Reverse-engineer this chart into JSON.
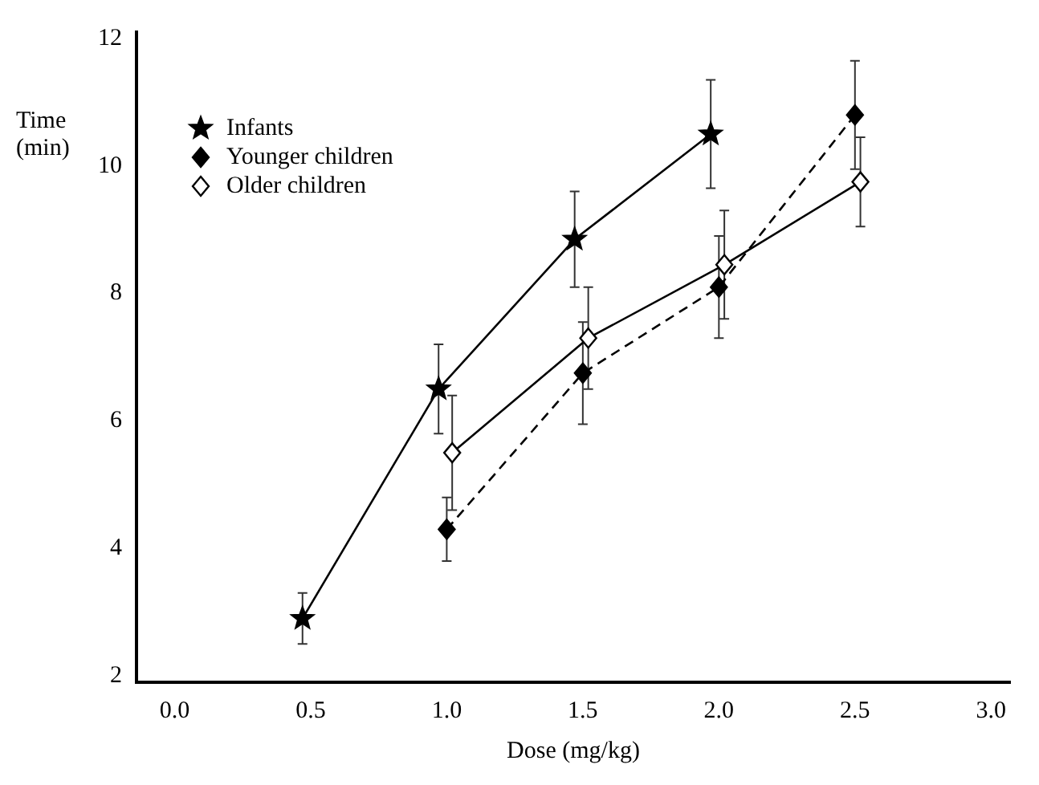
{
  "chart_data": {
    "type": "line",
    "xlabel": "Dose (mg/kg)",
    "ylabel": "Time (min)",
    "xlim": [
      -0.14,
      3.07
    ],
    "xticks": [
      {
        "value": 0,
        "label": "0.0"
      },
      0.5,
      {
        "value": 1,
        "label": "1.0"
      },
      1.5,
      {
        "value": 2,
        "label": "2.0"
      },
      2.5,
      {
        "value": 3,
        "label": "3.0"
      }
    ],
    "ylim": [
      1.9,
      12.1
    ],
    "yticks": [
      2,
      4,
      6,
      8,
      10,
      12
    ],
    "grid": false,
    "legend": "top left",
    "series": [
      {
        "name": "Infants",
        "color": "#000000",
        "marker": "star",
        "line_style": "solid",
        "x": [
          0.47,
          0.97,
          1.47,
          1.97
        ],
        "values": [
          2.9,
          6.5,
          8.85,
          10.5
        ],
        "errors": [
          0.4,
          0.7,
          0.75,
          0.85
        ]
      },
      {
        "name": "Younger children",
        "color": "#000000",
        "marker": "diamond",
        "line_style": "dashed",
        "x": [
          1.0,
          1.5,
          2.0,
          2.5
        ],
        "values": [
          4.3,
          6.75,
          8.1,
          10.8
        ],
        "errors": [
          0.5,
          0.8,
          0.8,
          0.85
        ]
      },
      {
        "name": "Older children",
        "color": "#ffffff",
        "marker": "diamond",
        "line_style": "solid",
        "x": [
          1.02,
          1.52,
          2.02,
          2.52
        ],
        "values": [
          5.5,
          7.3,
          8.45,
          9.75
        ],
        "errors": [
          0.9,
          0.8,
          0.85,
          0.7
        ]
      }
    ]
  }
}
